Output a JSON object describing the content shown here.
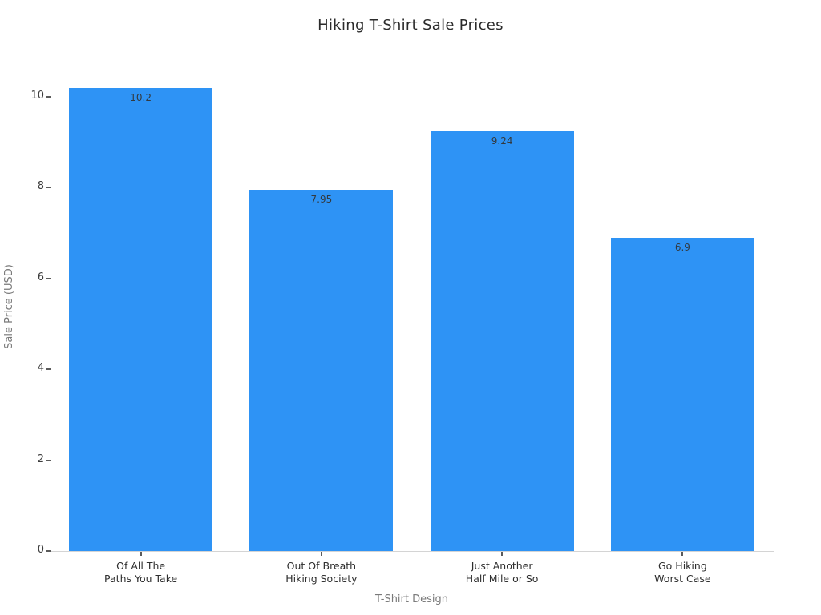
{
  "chart_data": {
    "type": "bar",
    "title": "Hiking T-Shirt Sale Prices",
    "xlabel": "T-Shirt Design",
    "ylabel": "Sale Price (USD)",
    "categories": [
      [
        "Of All The",
        "Paths You Take"
      ],
      [
        "Out Of Breath",
        "Hiking Society"
      ],
      [
        "Just Another",
        "Half Mile or So"
      ],
      [
        "Go Hiking",
        "Worst Case"
      ]
    ],
    "values": [
      10.2,
      7.95,
      9.24,
      6.9
    ],
    "value_labels": [
      "10.2",
      "7.95",
      "9.24",
      "6.9"
    ],
    "yticks": [
      0,
      2,
      4,
      6,
      8,
      10
    ],
    "ylim": [
      0,
      10.76
    ],
    "grid": false,
    "legend": "none",
    "colors": {
      "bar": "#2E93F5",
      "title_text": "#2b2b2b",
      "tick_text": "#3d3d3d",
      "axis_title_text": "#7a7a7a",
      "value_text": "#333a40",
      "spine": "#d4d4d4",
      "tick_mark": "#5a5a5a"
    }
  }
}
